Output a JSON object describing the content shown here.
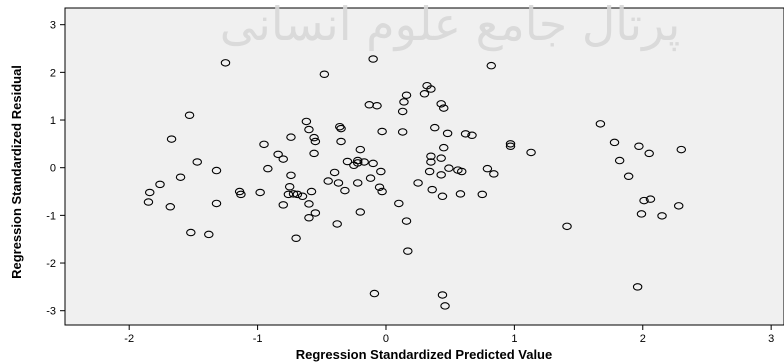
{
  "chart_data": {
    "type": "scatter",
    "title": "",
    "xlabel": "Regression Standardized Predicted Value",
    "ylabel": "Regression Standardized Residual",
    "xlim": [
      -2.5,
      3.1
    ],
    "ylim": [
      -3.3,
      3.35
    ],
    "x_ticks": [
      -2,
      -1,
      0,
      1,
      2,
      3
    ],
    "y_ticks": [
      -3,
      -2,
      -1,
      0,
      1,
      2,
      3
    ],
    "grid": false,
    "legend": "none",
    "marker": "open-circle",
    "watermark_text": "پرتال جامع علوم انسانی",
    "colors": {
      "plot_background": "#f0f0f0",
      "marker_stroke": "#000000",
      "frame": "#000000"
    },
    "points": [
      {
        "x": -1.25,
        "y": 2.2
      },
      {
        "x": -0.48,
        "y": 1.96
      },
      {
        "x": -0.1,
        "y": 2.28
      },
      {
        "x": 0.82,
        "y": 2.14
      },
      {
        "x": 0.32,
        "y": 1.72
      },
      {
        "x": 0.35,
        "y": 1.65
      },
      {
        "x": 0.3,
        "y": 1.55
      },
      {
        "x": 0.16,
        "y": 1.52
      },
      {
        "x": 0.14,
        "y": 1.38
      },
      {
        "x": -0.13,
        "y": 1.32
      },
      {
        "x": -0.07,
        "y": 1.3
      },
      {
        "x": 0.43,
        "y": 1.34
      },
      {
        "x": 0.45,
        "y": 1.25
      },
      {
        "x": 0.13,
        "y": 1.18
      },
      {
        "x": -1.53,
        "y": 1.1
      },
      {
        "x": -0.62,
        "y": 0.97
      },
      {
        "x": -0.36,
        "y": 0.86
      },
      {
        "x": -0.35,
        "y": 0.82
      },
      {
        "x": -0.6,
        "y": 0.8
      },
      {
        "x": 0.38,
        "y": 0.84
      },
      {
        "x": -0.03,
        "y": 0.76
      },
      {
        "x": 0.13,
        "y": 0.75
      },
      {
        "x": 0.48,
        "y": 0.72
      },
      {
        "x": 0.62,
        "y": 0.71
      },
      {
        "x": 0.67,
        "y": 0.68
      },
      {
        "x": -0.74,
        "y": 0.64
      },
      {
        "x": -0.56,
        "y": 0.63
      },
      {
        "x": -1.67,
        "y": 0.6
      },
      {
        "x": -0.55,
        "y": 0.55
      },
      {
        "x": -0.35,
        "y": 0.55
      },
      {
        "x": -0.95,
        "y": 0.49
      },
      {
        "x": 0.97,
        "y": 0.5
      },
      {
        "x": 0.97,
        "y": 0.45
      },
      {
        "x": 0.45,
        "y": 0.42
      },
      {
        "x": -0.2,
        "y": 0.38
      },
      {
        "x": 1.13,
        "y": 0.32
      },
      {
        "x": 1.67,
        "y": 0.92
      },
      {
        "x": 1.78,
        "y": 0.53
      },
      {
        "x": 1.97,
        "y": 0.45
      },
      {
        "x": 2.05,
        "y": 0.3
      },
      {
        "x": 2.3,
        "y": 0.38
      },
      {
        "x": 1.82,
        "y": 0.15
      },
      {
        "x": 1.89,
        "y": -0.18
      },
      {
        "x": -0.84,
        "y": 0.28
      },
      {
        "x": -0.56,
        "y": 0.3
      },
      {
        "x": -0.8,
        "y": 0.18
      },
      {
        "x": -0.22,
        "y": 0.15
      },
      {
        "x": -0.3,
        "y": 0.13
      },
      {
        "x": -1.6,
        "y": -0.2
      },
      {
        "x": -0.22,
        "y": 0.1
      },
      {
        "x": -0.25,
        "y": 0.05
      },
      {
        "x": -0.17,
        "y": 0.12
      },
      {
        "x": -0.1,
        "y": 0.09
      },
      {
        "x": 0.35,
        "y": 0.24
      },
      {
        "x": 0.35,
        "y": 0.12
      },
      {
        "x": 0.43,
        "y": 0.2
      },
      {
        "x": 0.49,
        "y": -0.01
      },
      {
        "x": -1.47,
        "y": 0.12
      },
      {
        "x": -1.32,
        "y": -0.06
      },
      {
        "x": -0.92,
        "y": -0.02
      },
      {
        "x": -0.4,
        "y": -0.1
      },
      {
        "x": -0.04,
        "y": -0.08
      },
      {
        "x": 0.34,
        "y": -0.08
      },
      {
        "x": 0.56,
        "y": -0.05
      },
      {
        "x": 0.59,
        "y": -0.08
      },
      {
        "x": 0.43,
        "y": -0.15
      },
      {
        "x": 0.79,
        "y": -0.02
      },
      {
        "x": 0.84,
        "y": -0.13
      },
      {
        "x": -0.74,
        "y": -0.16
      },
      {
        "x": -0.45,
        "y": -0.28
      },
      {
        "x": -0.22,
        "y": -0.32
      },
      {
        "x": -0.12,
        "y": -0.22
      },
      {
        "x": -0.05,
        "y": -0.41
      },
      {
        "x": -0.32,
        "y": -0.48
      },
      {
        "x": -0.03,
        "y": -0.5
      },
      {
        "x": -0.37,
        "y": -0.32
      },
      {
        "x": 0.25,
        "y": -0.32
      },
      {
        "x": -1.76,
        "y": -0.35
      },
      {
        "x": -1.84,
        "y": -0.52
      },
      {
        "x": -1.14,
        "y": -0.5
      },
      {
        "x": -1.13,
        "y": -0.56
      },
      {
        "x": -0.98,
        "y": -0.52
      },
      {
        "x": -0.75,
        "y": -0.4
      },
      {
        "x": -0.76,
        "y": -0.56
      },
      {
        "x": -0.72,
        "y": -0.55
      },
      {
        "x": -0.69,
        "y": -0.56
      },
      {
        "x": -0.65,
        "y": -0.6
      },
      {
        "x": -0.58,
        "y": -0.5
      },
      {
        "x": 0.36,
        "y": -0.46
      },
      {
        "x": 0.58,
        "y": -0.55
      },
      {
        "x": 0.75,
        "y": -0.56
      },
      {
        "x": 0.44,
        "y": -0.6
      },
      {
        "x": -1.85,
        "y": -0.72
      },
      {
        "x": -1.68,
        "y": -0.82
      },
      {
        "x": -1.32,
        "y": -0.75
      },
      {
        "x": -0.8,
        "y": -0.78
      },
      {
        "x": -0.6,
        "y": -0.76
      },
      {
        "x": -0.55,
        "y": -0.95
      },
      {
        "x": -0.2,
        "y": -0.93
      },
      {
        "x": 0.1,
        "y": -0.75
      },
      {
        "x": -0.6,
        "y": -1.05
      },
      {
        "x": -0.38,
        "y": -1.18
      },
      {
        "x": 0.16,
        "y": -1.12
      },
      {
        "x": -1.52,
        "y": -1.36
      },
      {
        "x": -1.38,
        "y": -1.4
      },
      {
        "x": -0.7,
        "y": -1.48
      },
      {
        "x": 1.41,
        "y": -1.23
      },
      {
        "x": 2.01,
        "y": -0.69
      },
      {
        "x": 2.06,
        "y": -0.66
      },
      {
        "x": 1.99,
        "y": -0.97
      },
      {
        "x": 2.15,
        "y": -1.01
      },
      {
        "x": 2.28,
        "y": -0.8
      },
      {
        "x": 0.17,
        "y": -1.75
      },
      {
        "x": 1.96,
        "y": -2.5
      },
      {
        "x": -0.09,
        "y": -2.64
      },
      {
        "x": 0.44,
        "y": -2.67
      },
      {
        "x": 0.46,
        "y": -2.9
      }
    ]
  }
}
